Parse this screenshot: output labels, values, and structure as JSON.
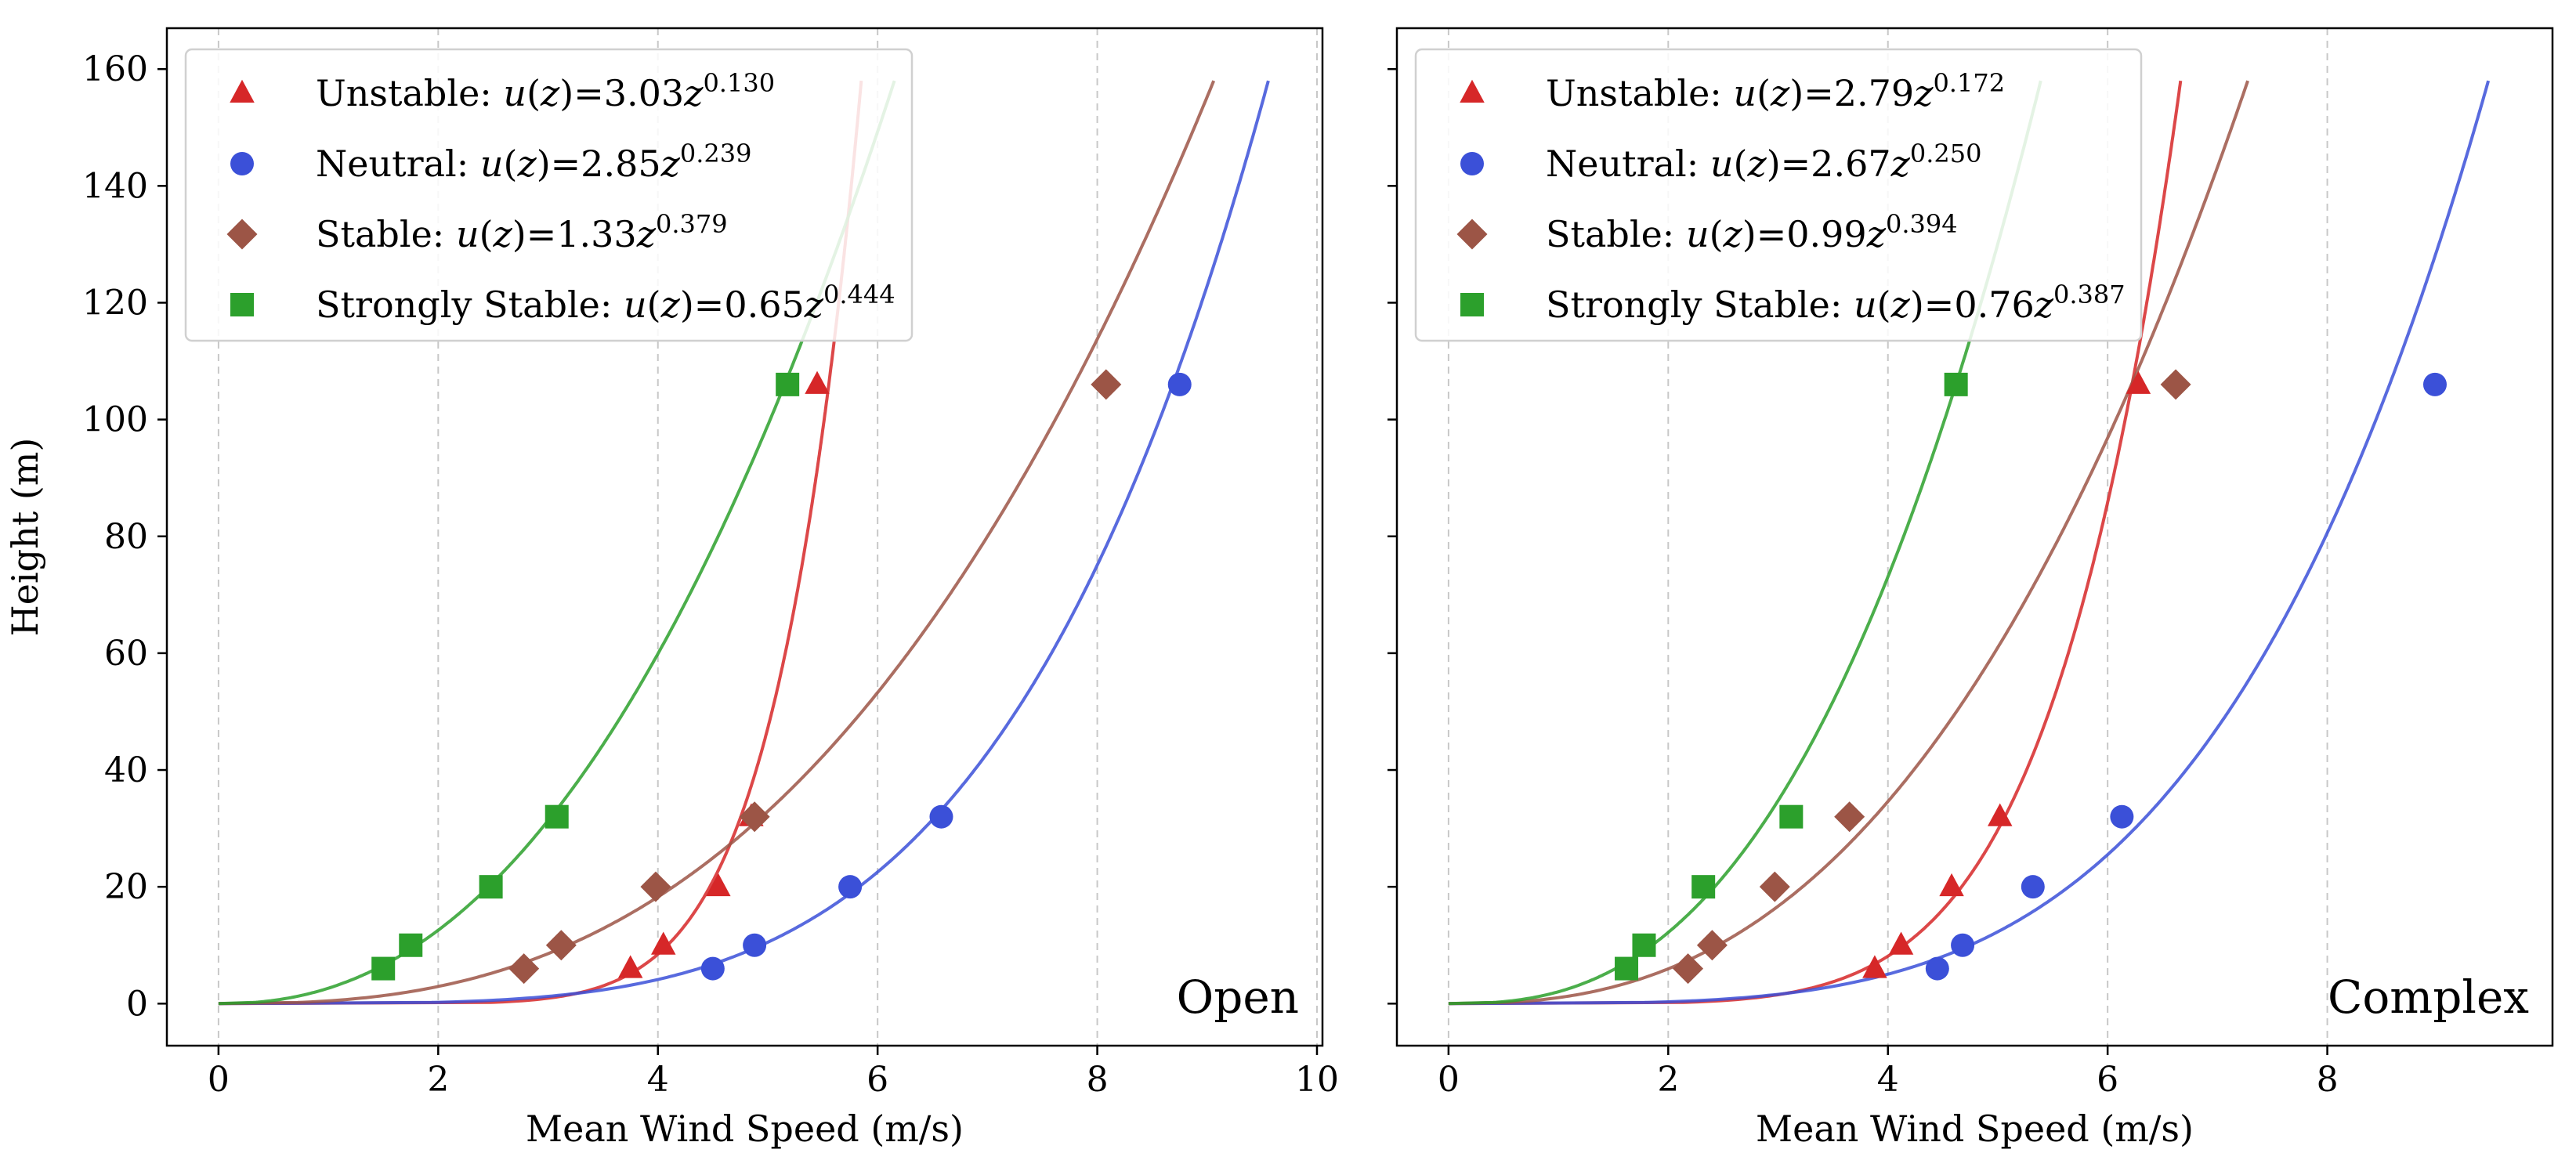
{
  "chart_data": [
    {
      "type": "scatter",
      "panel_label": "Open",
      "xlabel": "Mean Wind Speed (m/s)",
      "ylabel": "Height (m)",
      "xlim": [
        -0.47,
        10.05
      ],
      "ylim": [
        -7.2,
        167
      ],
      "xticks": [
        0,
        2,
        4,
        6,
        8,
        10
      ],
      "yticks": [
        0,
        20,
        40,
        60,
        80,
        100,
        120,
        140,
        160
      ],
      "grid": "vertical dashed",
      "legend_position": "top-left",
      "series": [
        {
          "name": "Unstable",
          "legend_prefix": "Unstable: ",
          "fit_a": "3.03",
          "fit_b": "0.130",
          "a": 3.03,
          "b": 0.13,
          "color": "#d62728",
          "marker": "triangle",
          "points": [
            {
              "x": 3.75,
              "y": 6
            },
            {
              "x": 4.05,
              "y": 10
            },
            {
              "x": 4.55,
              "y": 20
            },
            {
              "x": 4.85,
              "y": 32
            },
            {
              "x": 5.45,
              "y": 106
            }
          ]
        },
        {
          "name": "Neutral",
          "legend_prefix": "Neutral: ",
          "fit_a": "2.85",
          "fit_b": "0.239",
          "a": 2.85,
          "b": 0.239,
          "color": "#3b50d8",
          "marker": "circle",
          "points": [
            {
              "x": 4.5,
              "y": 6
            },
            {
              "x": 4.88,
              "y": 10
            },
            {
              "x": 5.75,
              "y": 20
            },
            {
              "x": 6.58,
              "y": 32
            },
            {
              "x": 8.75,
              "y": 106
            }
          ]
        },
        {
          "name": "Stable",
          "legend_prefix": "Stable: ",
          "fit_a": "1.33",
          "fit_b": "0.379",
          "a": 1.33,
          "b": 0.379,
          "color": "#9c5546",
          "marker": "diamond",
          "points": [
            {
              "x": 2.78,
              "y": 6
            },
            {
              "x": 3.12,
              "y": 10
            },
            {
              "x": 3.98,
              "y": 20
            },
            {
              "x": 4.88,
              "y": 32
            },
            {
              "x": 8.08,
              "y": 106
            }
          ]
        },
        {
          "name": "Strongly Stable",
          "legend_prefix": "Strongly Stable: ",
          "fit_a": "0.65",
          "fit_b": "0.444",
          "a": 0.65,
          "b": 0.444,
          "color": "#2ca02c",
          "marker": "square",
          "points": [
            {
              "x": 1.5,
              "y": 6
            },
            {
              "x": 1.75,
              "y": 10
            },
            {
              "x": 2.48,
              "y": 20
            },
            {
              "x": 3.08,
              "y": 32
            },
            {
              "x": 5.18,
              "y": 106
            }
          ]
        }
      ]
    },
    {
      "type": "scatter",
      "panel_label": "Complex",
      "xlabel": "Mean Wind Speed (m/s)",
      "ylabel": "",
      "xlim": [
        -0.47,
        10.05
      ],
      "ylim": [
        -7.2,
        167
      ],
      "xticks": [
        0,
        2,
        4,
        6,
        8
      ],
      "yticks": [
        0,
        20,
        40,
        60,
        80,
        100,
        120,
        140,
        160
      ],
      "grid": "vertical dashed",
      "legend_position": "top-left",
      "series": [
        {
          "name": "Unstable",
          "legend_prefix": "Unstable: ",
          "fit_a": "2.79",
          "fit_b": "0.172",
          "a": 2.79,
          "b": 0.172,
          "color": "#d62728",
          "marker": "triangle",
          "points": [
            {
              "x": 3.88,
              "y": 6
            },
            {
              "x": 4.12,
              "y": 10
            },
            {
              "x": 4.58,
              "y": 20
            },
            {
              "x": 5.02,
              "y": 32
            },
            {
              "x": 6.28,
              "y": 106
            }
          ]
        },
        {
          "name": "Neutral",
          "legend_prefix": "Neutral: ",
          "fit_a": "2.67",
          "fit_b": "0.250",
          "a": 2.67,
          "b": 0.25,
          "color": "#3b50d8",
          "marker": "circle",
          "points": [
            {
              "x": 4.45,
              "y": 6
            },
            {
              "x": 4.68,
              "y": 10
            },
            {
              "x": 5.32,
              "y": 20
            },
            {
              "x": 6.13,
              "y": 32
            },
            {
              "x": 8.98,
              "y": 106
            }
          ]
        },
        {
          "name": "Stable",
          "legend_prefix": "Stable: ",
          "fit_a": "0.99",
          "fit_b": "0.394",
          "a": 0.99,
          "b": 0.394,
          "color": "#9c5546",
          "marker": "diamond",
          "points": [
            {
              "x": 2.18,
              "y": 6
            },
            {
              "x": 2.4,
              "y": 10
            },
            {
              "x": 2.97,
              "y": 20
            },
            {
              "x": 3.65,
              "y": 32
            },
            {
              "x": 6.62,
              "y": 106
            }
          ]
        },
        {
          "name": "Strongly Stable",
          "legend_prefix": "Strongly Stable: ",
          "fit_a": "0.76",
          "fit_b": "0.387",
          "a": 0.76,
          "b": 0.387,
          "color": "#2ca02c",
          "marker": "square",
          "points": [
            {
              "x": 1.62,
              "y": 6
            },
            {
              "x": 1.78,
              "y": 10
            },
            {
              "x": 2.32,
              "y": 20
            },
            {
              "x": 3.12,
              "y": 32
            },
            {
              "x": 4.62,
              "y": 106
            }
          ]
        }
      ]
    }
  ]
}
